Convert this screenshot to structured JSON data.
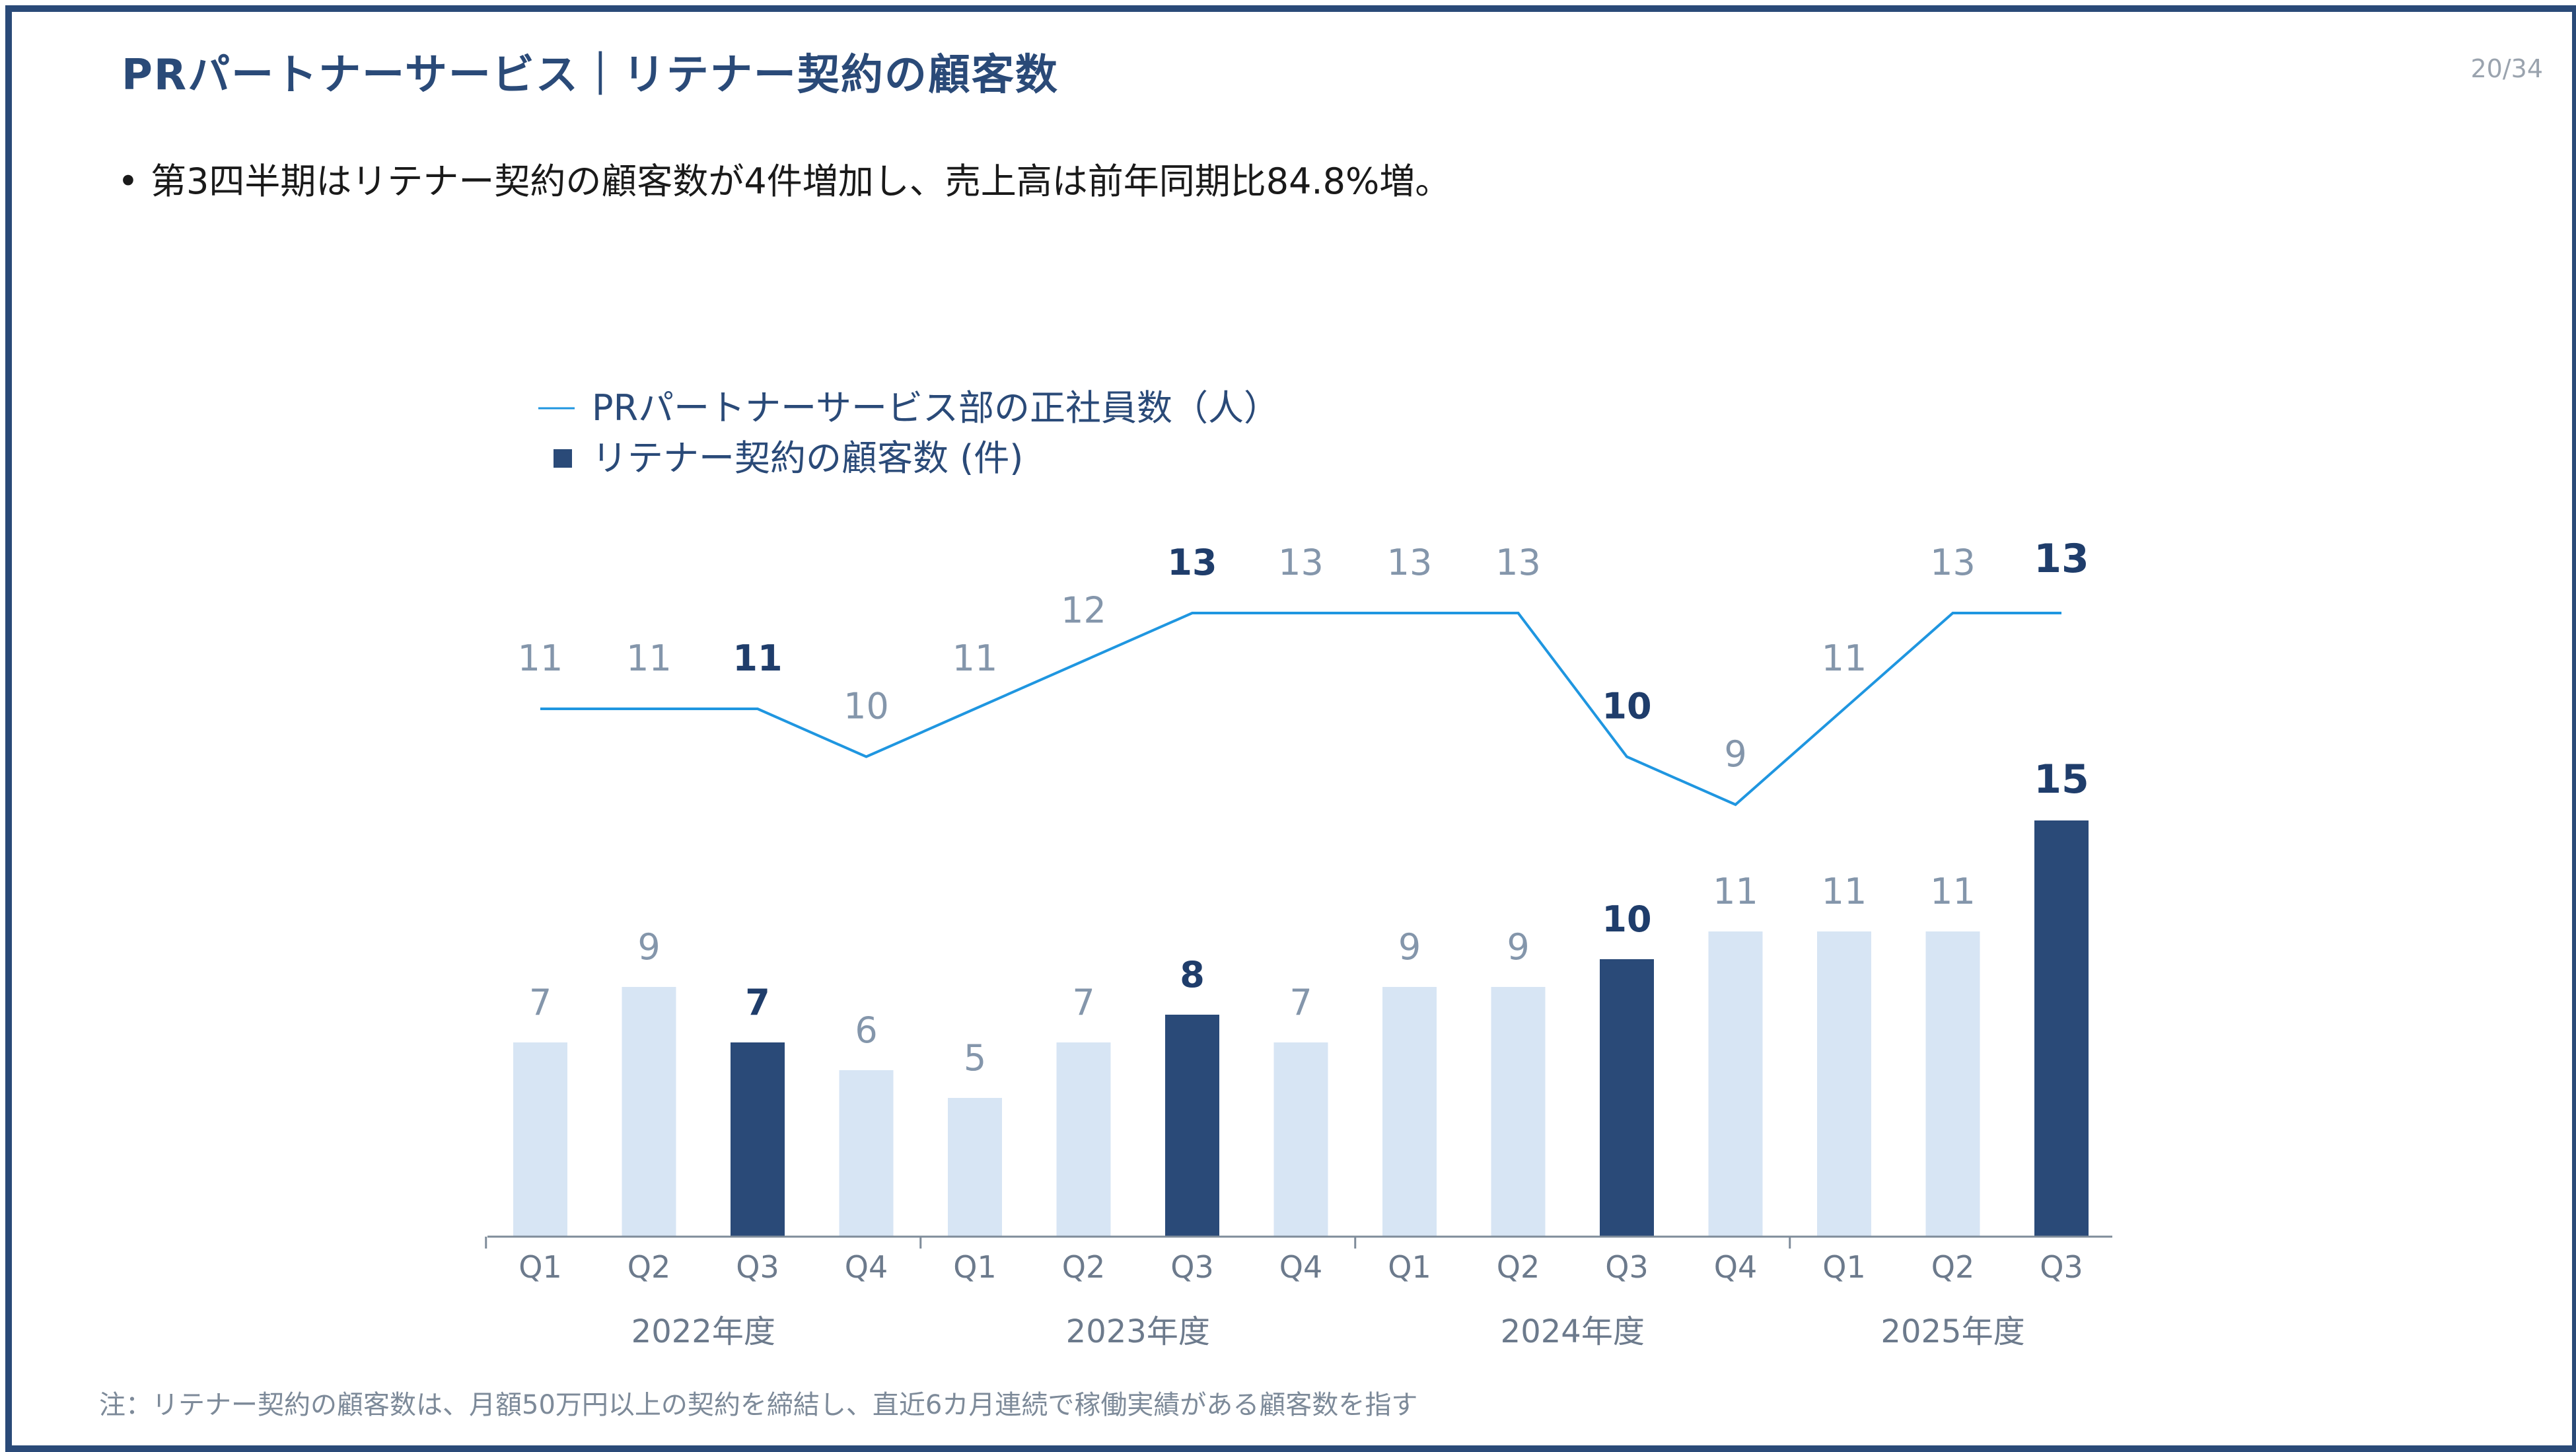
{
  "header": {
    "title": "PRパートナーサービス｜リテナー契約の顧客数",
    "page": "20/34"
  },
  "bullets": [
    "第3四半期はリテナー契約の顧客数が4件増加し、売上高は前年同期比84.8%増。"
  ],
  "footnote": "注：リテナー契約の顧客数は、月額50万円以上の契約を締結し、直近6カ月連続で稼働実績がある顧客数を指す",
  "colors": {
    "bar_light": "#d7e5f4",
    "bar_dark": "#2a4a78",
    "line": "#1f96e0",
    "axis": "#7f8c9a"
  },
  "chart_data": {
    "type": "bar+line",
    "categories": [
      "Q1",
      "Q2",
      "Q3",
      "Q4",
      "Q1",
      "Q2",
      "Q3",
      "Q4",
      "Q1",
      "Q2",
      "Q3",
      "Q4",
      "Q1",
      "Q2",
      "Q3"
    ],
    "year_groups": [
      {
        "label": "2022年度",
        "count": 4
      },
      {
        "label": "2023年度",
        "count": 4
      },
      {
        "label": "2024年度",
        "count": 4
      },
      {
        "label": "2025年度",
        "count": 3
      }
    ],
    "series": [
      {
        "name": "PRパートナーサービス部の正社員数（人）",
        "type": "line",
        "values": [
          11,
          11,
          11,
          10,
          11,
          12,
          13,
          13,
          13,
          13,
          10,
          9,
          11,
          13,
          13
        ]
      },
      {
        "name": "リテナー契約の顧客数 (件)",
        "type": "bar",
        "values": [
          7,
          9,
          7,
          6,
          5,
          7,
          8,
          7,
          9,
          9,
          10,
          11,
          11,
          11,
          15
        ]
      }
    ],
    "highlight_indices": [
      2,
      6,
      10,
      14
    ],
    "legend_position": "top-left",
    "grid": false
  }
}
